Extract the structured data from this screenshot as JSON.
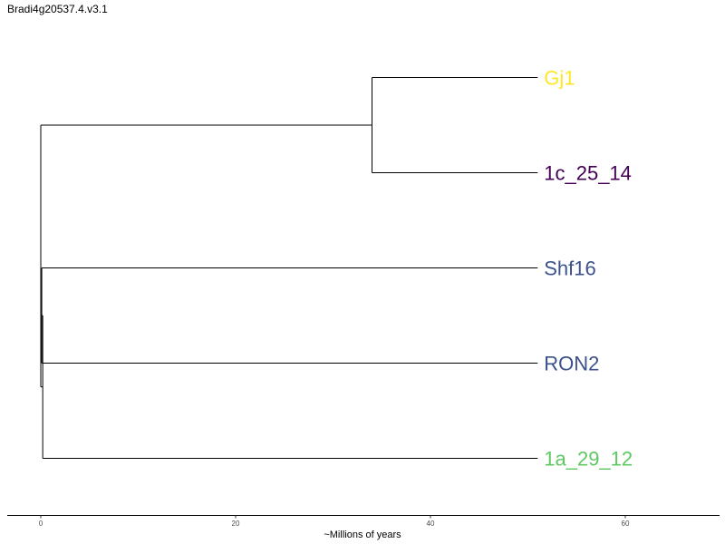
{
  "title": "Bradi4g20537.4.v3.1",
  "chart_data": {
    "type": "dendrogram",
    "title": "Bradi4g20537.4.v3.1",
    "xlabel": "~Millions of years",
    "xlim": [
      -3.5,
      70
    ],
    "x_ticks": [
      0,
      20,
      40,
      60
    ],
    "tips": [
      {
        "name": "Gj1",
        "color": "#fde725"
      },
      {
        "name": "1c_25_14",
        "color": "#440154"
      },
      {
        "name": "Shf16",
        "color": "#3b528b"
      },
      {
        "name": "RON2",
        "color": "#3b528b"
      },
      {
        "name": "1a_29_12",
        "color": "#5ec962"
      }
    ],
    "tip_time": 51,
    "tree": {
      "time": 0,
      "children": [
        {
          "time": 34,
          "children": [
            {
              "tip": 0
            },
            {
              "tip": 1
            }
          ]
        },
        {
          "time": 0.2,
          "children": [
            {
              "time": 0.1,
              "children": [
                {
                  "tip": 2
                },
                {
                  "tip": 3
                }
              ]
            },
            {
              "tip": 4
            }
          ]
        }
      ]
    }
  }
}
